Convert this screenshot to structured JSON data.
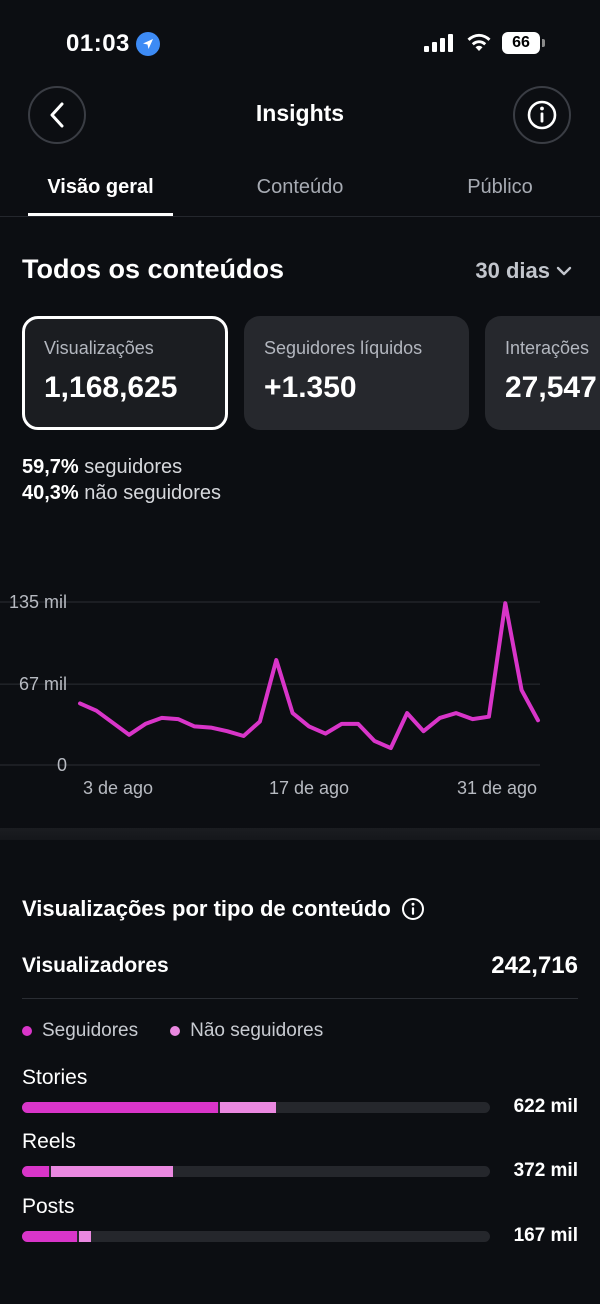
{
  "status_bar": {
    "time": "01:03",
    "battery": "66"
  },
  "header": {
    "title": "Insights"
  },
  "tabs": [
    {
      "label": "Visão geral",
      "active": true
    },
    {
      "label": "Conteúdo",
      "active": false
    },
    {
      "label": "Público",
      "active": false
    }
  ],
  "section": {
    "title": "Todos os conteúdos",
    "period": "30 dias"
  },
  "cards": [
    {
      "label": "Visualizações",
      "value": "1,168,625"
    },
    {
      "label": "Seguidores líquidos",
      "value": "+1.350"
    },
    {
      "label": "Interações",
      "value": "27,547"
    }
  ],
  "breakdown": {
    "followers_pct": "59,7%",
    "followers_text": "seguidores",
    "nonfollowers_pct": "40,3%",
    "nonfollowers_text": "não seguidores"
  },
  "chart_data": {
    "type": "line",
    "x_tick_labels": [
      "3 de ago",
      "17 de ago",
      "31 de ago"
    ],
    "y_tick_labels": [
      "135 mil",
      "67 mil",
      "0"
    ],
    "ylim": [
      0,
      135000
    ],
    "values": [
      51000,
      45000,
      35000,
      25000,
      34000,
      39000,
      38000,
      32000,
      31000,
      28000,
      24000,
      36000,
      87000,
      43000,
      32000,
      26000,
      34000,
      34000,
      20000,
      14000,
      43000,
      28000,
      39000,
      43000,
      38000,
      40000,
      134000,
      62000,
      37000
    ],
    "series_color": "#d935c9",
    "grid": true
  },
  "content_type": {
    "title": "Visualizações por tipo de conteúdo",
    "viewers_label": "Visualizadores",
    "viewers_value": "242,716",
    "legend": [
      {
        "label": "Seguidores",
        "color": "#d935c9"
      },
      {
        "label": "Não seguidores",
        "color": "#ea88e0"
      }
    ],
    "rows": [
      {
        "label": "Stories",
        "value": "622 mil",
        "followers_frac": 0.42,
        "nonfollowers_frac": 0.12
      },
      {
        "label": "Reels",
        "value": "372 mil",
        "followers_frac": 0.06,
        "nonfollowers_frac": 0.26
      },
      {
        "label": "Posts",
        "value": "167 mil",
        "followers_frac": 0.12,
        "nonfollowers_frac": 0.025
      }
    ]
  }
}
